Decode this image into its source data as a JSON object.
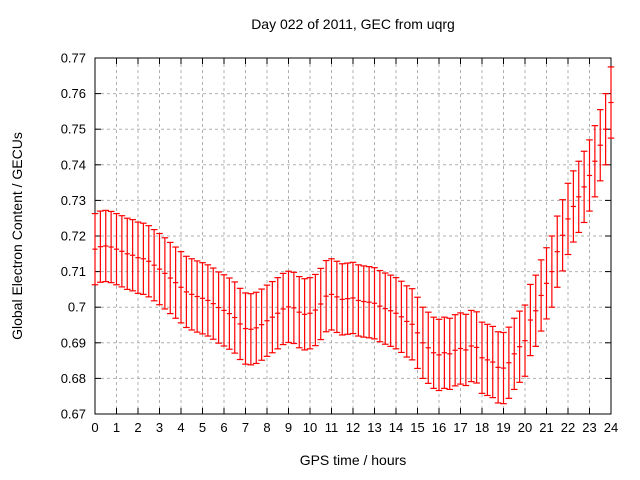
{
  "chart_data": {
    "type": "errorbar",
    "title": "Day 022 of 2011, GEC from uqrg",
    "xlabel": "GPS time / hours",
    "ylabel": "Global Electron Content / GECUs",
    "xlim": [
      0,
      24
    ],
    "ylim": [
      0.67,
      0.77
    ],
    "grid": true,
    "legend": "none",
    "series_color": "#ff0000",
    "grid_color": "#b0b0b0",
    "axis_color": "#000000",
    "x_tick_labels": [
      "0",
      "1",
      "2",
      "3",
      "4",
      "5",
      "6",
      "7",
      "8",
      "9",
      "10",
      "11",
      "12",
      "13",
      "14",
      "15",
      "16",
      "17",
      "18",
      "19",
      "20",
      "21",
      "22",
      "23",
      "24"
    ],
    "y_tick_labels": [
      "0.67",
      "0.68",
      "0.69",
      "0.7",
      "0.71",
      "0.72",
      "0.73",
      "0.74",
      "0.75",
      "0.76",
      "0.77"
    ],
    "yerr": 0.01,
    "x": [
      0,
      0.25,
      0.5,
      0.75,
      1,
      1.25,
      1.5,
      1.75,
      2,
      2.25,
      2.5,
      2.75,
      3,
      3.25,
      3.5,
      3.75,
      4,
      4.25,
      4.5,
      4.75,
      5,
      5.25,
      5.5,
      5.75,
      6,
      6.25,
      6.5,
      6.75,
      7,
      7.25,
      7.5,
      7.75,
      8,
      8.25,
      8.5,
      8.75,
      9,
      9.25,
      9.5,
      9.75,
      10,
      10.25,
      10.5,
      10.75,
      11,
      11.25,
      11.5,
      11.75,
      12,
      12.25,
      12.5,
      12.75,
      13,
      13.25,
      13.5,
      13.75,
      14,
      14.25,
      14.5,
      14.75,
      15,
      15.25,
      15.5,
      15.75,
      16,
      16.25,
      16.5,
      16.75,
      17,
      17.25,
      17.5,
      17.75,
      18,
      18.25,
      18.5,
      18.75,
      19,
      19.25,
      19.5,
      19.75,
      20,
      20.25,
      20.5,
      20.75,
      21,
      21.25,
      21.5,
      21.75,
      22,
      22.25,
      22.5,
      22.75,
      23,
      23.25,
      23.5,
      23.75,
      24
    ],
    "y": [
      0.7163,
      0.717,
      0.7172,
      0.7169,
      0.7163,
      0.7157,
      0.715,
      0.7146,
      0.7139,
      0.7136,
      0.7129,
      0.7118,
      0.7107,
      0.7095,
      0.7082,
      0.7069,
      0.7056,
      0.7043,
      0.7036,
      0.703,
      0.7025,
      0.7019,
      0.701,
      0.6999,
      0.6991,
      0.6982,
      0.6971,
      0.6953,
      0.694,
      0.6938,
      0.6942,
      0.6951,
      0.6962,
      0.6972,
      0.6983,
      0.6995,
      0.7001,
      0.6998,
      0.6986,
      0.698,
      0.6983,
      0.6992,
      0.7009,
      0.7031,
      0.7036,
      0.7029,
      0.7022,
      0.7024,
      0.7026,
      0.7019,
      0.7016,
      0.7014,
      0.7011,
      0.7003,
      0.6996,
      0.699,
      0.6983,
      0.6973,
      0.696,
      0.6952,
      0.6928,
      0.69,
      0.6886,
      0.6872,
      0.6866,
      0.6872,
      0.6869,
      0.6879,
      0.6884,
      0.688,
      0.6891,
      0.6887,
      0.6858,
      0.6852,
      0.6846,
      0.6831,
      0.6829,
      0.6844,
      0.6869,
      0.6889,
      0.6906,
      0.6964,
      0.699,
      0.7033,
      0.7067,
      0.71,
      0.7156,
      0.7202,
      0.7248,
      0.7283,
      0.731,
      0.7338,
      0.737,
      0.741,
      0.7455,
      0.75,
      0.7575
    ]
  }
}
